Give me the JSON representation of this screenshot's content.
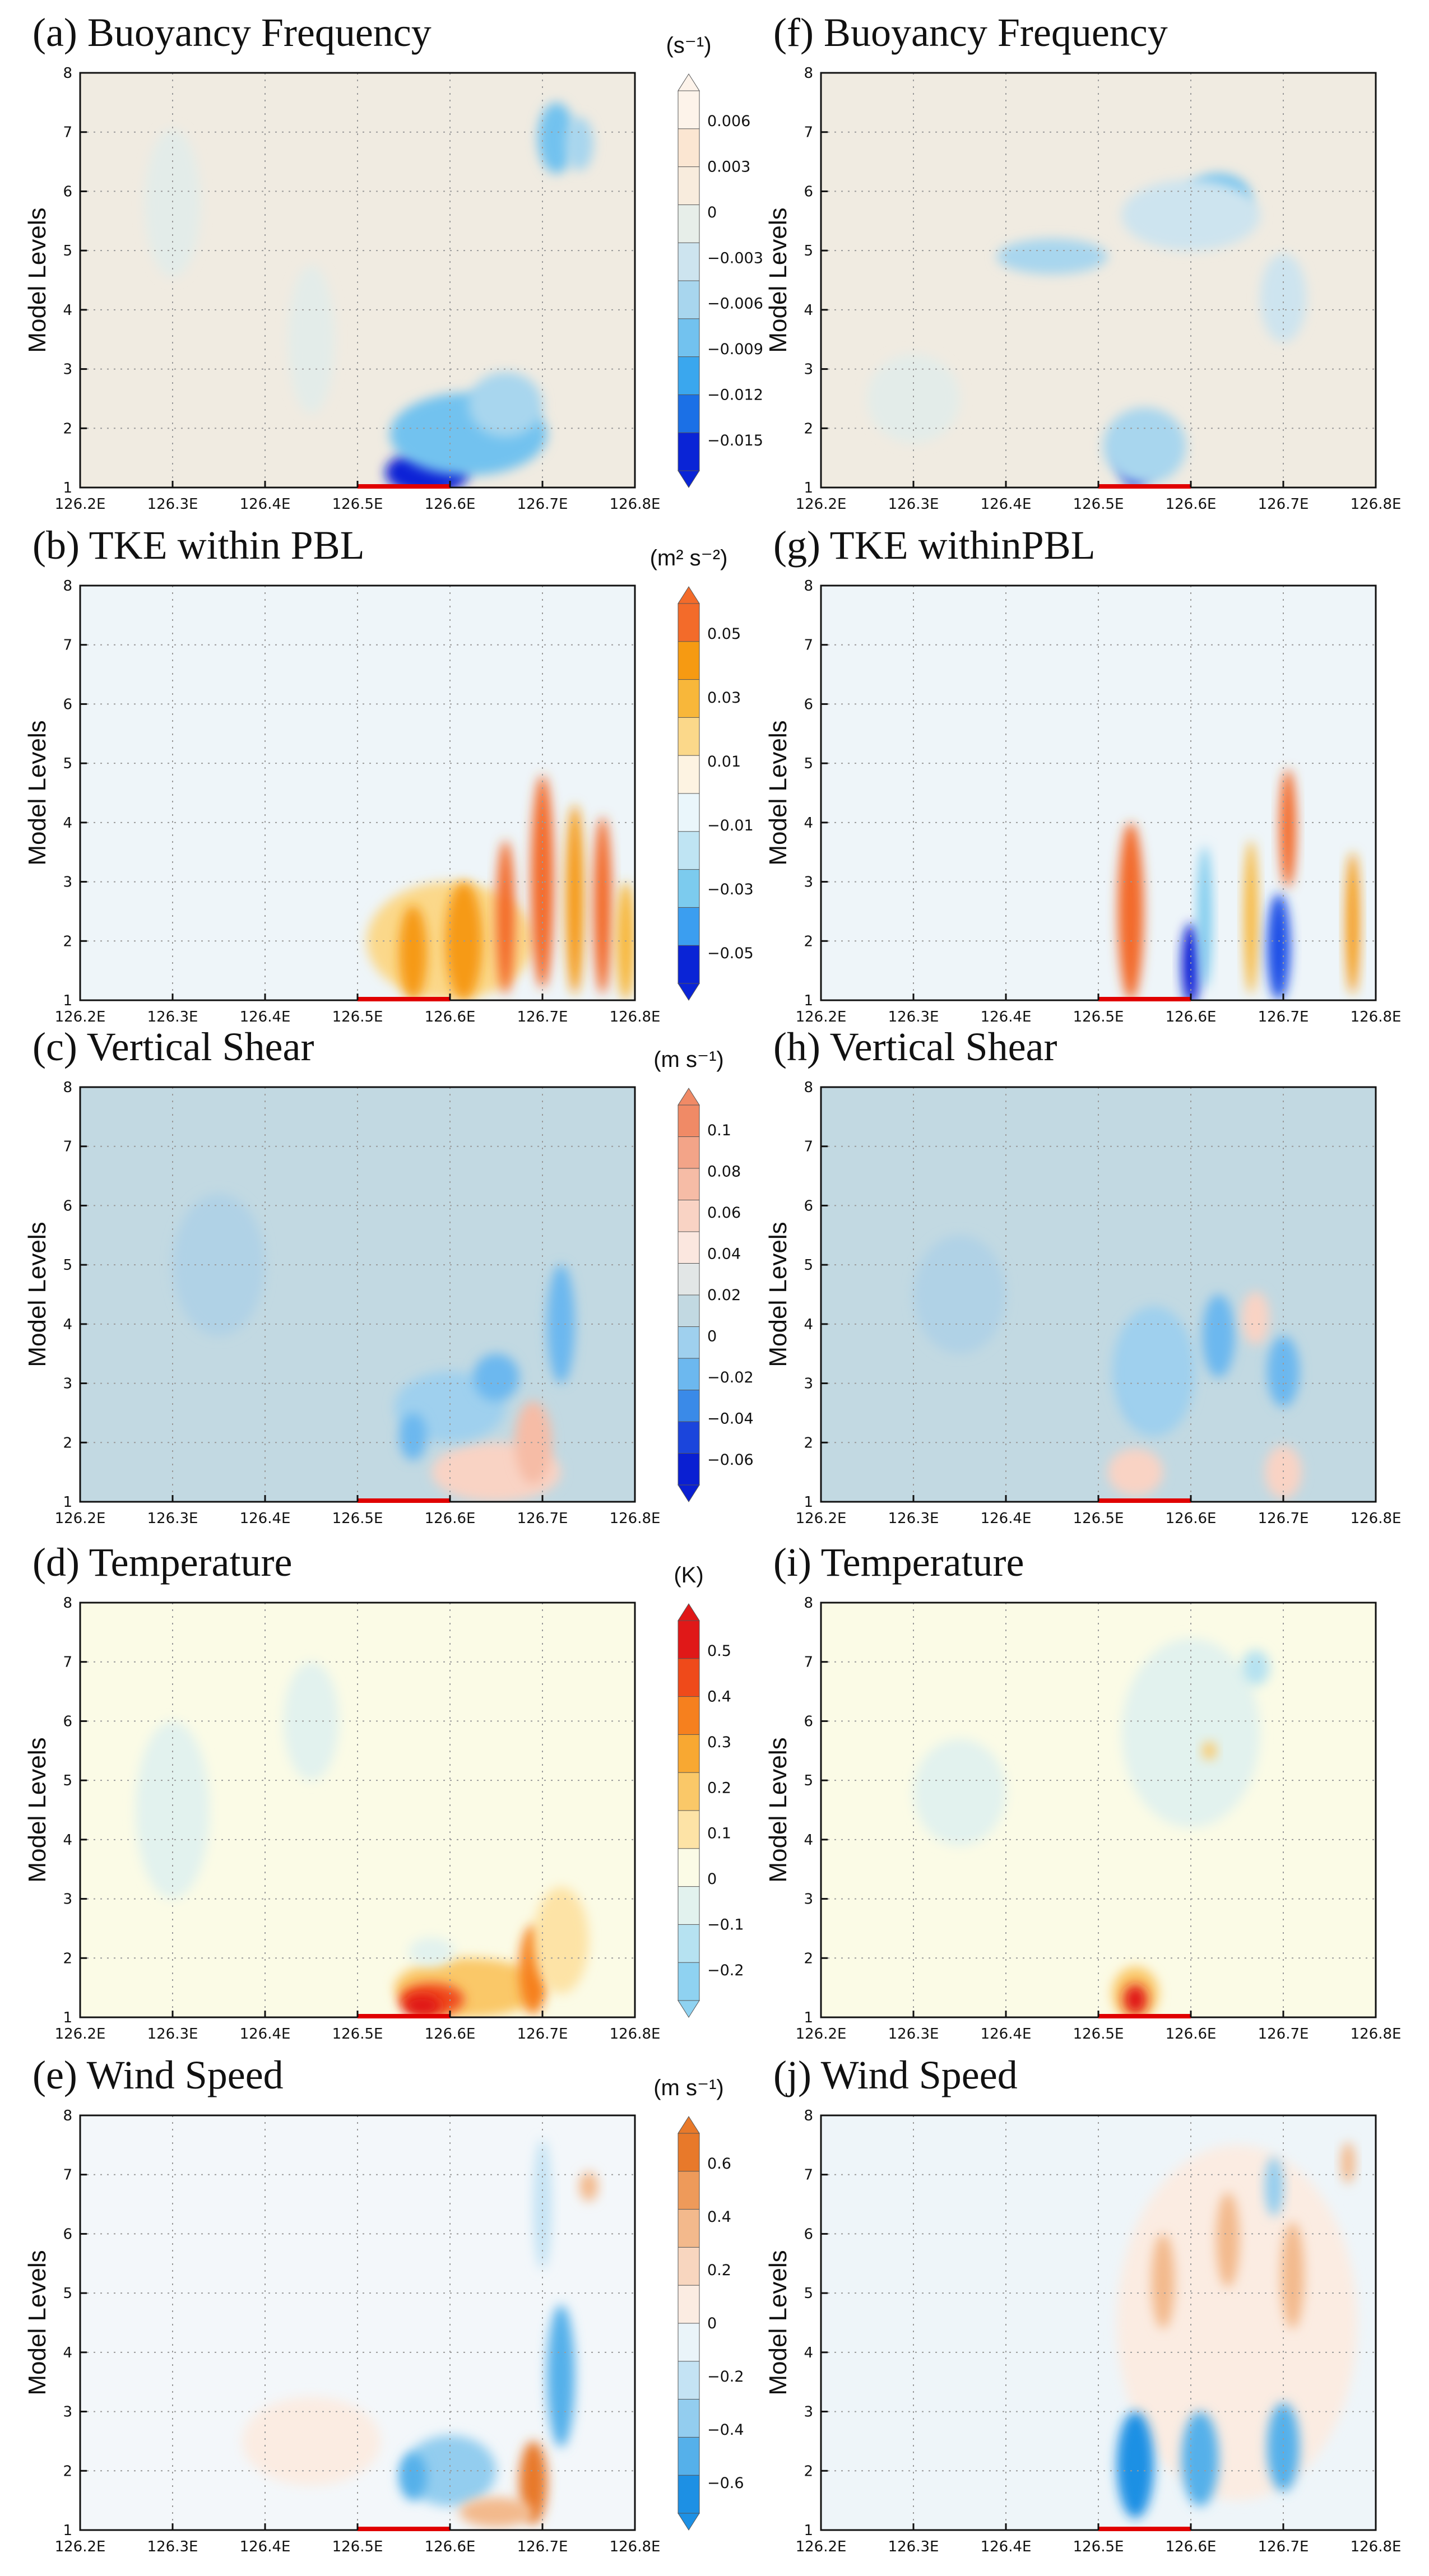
{
  "chart_data": [
    {
      "type": "heatmap",
      "title": "(a) Buoyancy Frequency",
      "ylabel": "Model Levels",
      "xlabel": "",
      "xlim": [
        126.2,
        126.8
      ],
      "ylim": [
        1,
        8
      ],
      "x_ticks": [
        "126.2E",
        "126.3E",
        "126.4E",
        "126.5E",
        "126.6E",
        "126.7E",
        "126.8E"
      ],
      "y_ticks": [
        "1",
        "2",
        "3",
        "4",
        "5",
        "6",
        "7",
        "8"
      ],
      "background": "#f0ebe1",
      "site_line": [
        126.5,
        126.6
      ],
      "colorbar": {
        "unit": "(s⁻¹)",
        "labels": [
          "0.006",
          "0.003",
          "0",
          "−0.003",
          "−0.006",
          "−0.009",
          "−0.012",
          "−0.015"
        ],
        "colors": [
          "#fdf3ea",
          "#fbe6d2",
          "#f8ecdd",
          "#e7eee9",
          "#cde4ef",
          "#a8d6ee",
          "#72c2ef",
          "#3aa7ee",
          "#1b70e6",
          "#0a24d6"
        ]
      },
      "blobs": [
        {
          "x": 126.575,
          "y": 1.25,
          "w": 0.09,
          "h": 0.75,
          "color": "#0a24d6"
        },
        {
          "x": 126.62,
          "y": 1.9,
          "w": 0.17,
          "h": 1.4,
          "color": "#72c2ef"
        },
        {
          "x": 126.66,
          "y": 2.4,
          "w": 0.08,
          "h": 1.1,
          "color": "#a8d6ee"
        },
        {
          "x": 126.715,
          "y": 6.9,
          "w": 0.04,
          "h": 1.2,
          "color": "#72c2ef"
        },
        {
          "x": 126.74,
          "y": 6.8,
          "w": 0.03,
          "h": 0.9,
          "color": "#a8d6ee"
        },
        {
          "x": 126.3,
          "y": 5.8,
          "w": 0.06,
          "h": 2.5,
          "color": "#e3ece9"
        },
        {
          "x": 126.45,
          "y": 3.5,
          "w": 0.05,
          "h": 2.5,
          "color": "#e3ece9"
        }
      ]
    },
    {
      "type": "heatmap",
      "title": "(f) Buoyancy Frequency",
      "ylabel": "Model Levels",
      "xlabel": "",
      "xlim": [
        126.2,
        126.8
      ],
      "ylim": [
        1,
        8
      ],
      "x_ticks": [
        "126.2E",
        "126.3E",
        "126.4E",
        "126.5E",
        "126.6E",
        "126.7E",
        "126.8E"
      ],
      "y_ticks": [
        "1",
        "2",
        "3",
        "4",
        "5",
        "6",
        "7",
        "8"
      ],
      "background": "#f0ebe1",
      "site_line": [
        126.5,
        126.6
      ],
      "colorbar": null,
      "blobs": [
        {
          "x": 126.54,
          "y": 1.5,
          "w": 0.035,
          "h": 1.0,
          "color": "#0a24d6"
        },
        {
          "x": 126.55,
          "y": 1.7,
          "w": 0.09,
          "h": 1.3,
          "color": "#a8d6ee"
        },
        {
          "x": 126.45,
          "y": 4.9,
          "w": 0.12,
          "h": 0.6,
          "color": "#a8d6ee"
        },
        {
          "x": 126.63,
          "y": 5.9,
          "w": 0.07,
          "h": 0.8,
          "color": "#72c2ef"
        },
        {
          "x": 126.6,
          "y": 5.6,
          "w": 0.15,
          "h": 1.2,
          "color": "#cde4ef"
        },
        {
          "x": 126.7,
          "y": 4.2,
          "w": 0.05,
          "h": 1.5,
          "color": "#cde4ef"
        },
        {
          "x": 126.3,
          "y": 2.5,
          "w": 0.1,
          "h": 1.5,
          "color": "#e3ece9"
        }
      ]
    },
    {
      "type": "heatmap",
      "title": "(b) TKE within PBL",
      "ylabel": "Model Levels",
      "xlabel": "",
      "xlim": [
        126.2,
        126.8
      ],
      "ylim": [
        1,
        8
      ],
      "x_ticks": [
        "126.2E",
        "126.3E",
        "126.4E",
        "126.5E",
        "126.6E",
        "126.7E",
        "126.8E"
      ],
      "y_ticks": [
        "1",
        "2",
        "3",
        "4",
        "5",
        "6",
        "7",
        "8"
      ],
      "background": "#eef5f9",
      "site_line": [
        126.5,
        126.6
      ],
      "colorbar": {
        "unit": "(m² s⁻²)",
        "labels": [
          "0.05",
          "0.03",
          "0.01",
          "−0.01",
          "−0.03",
          "−0.05"
        ],
        "colors": [
          "#f36b2a",
          "#f69a12",
          "#f8b73a",
          "#fbd88a",
          "#fdf3e2",
          "#eaf6fb",
          "#bfe4f3",
          "#7ccbee",
          "#3b9ef0",
          "#0a24d6"
        ]
      },
      "blobs": [
        {
          "x": 126.6,
          "y": 2.0,
          "w": 0.18,
          "h": 2.0,
          "color": "#fbd88a"
        },
        {
          "x": 126.56,
          "y": 1.8,
          "w": 0.03,
          "h": 1.6,
          "color": "#f69a12"
        },
        {
          "x": 126.615,
          "y": 2.0,
          "w": 0.04,
          "h": 2.0,
          "color": "#f69a12"
        },
        {
          "x": 126.66,
          "y": 2.4,
          "w": 0.02,
          "h": 2.6,
          "color": "#f36b2a"
        },
        {
          "x": 126.7,
          "y": 3.0,
          "w": 0.025,
          "h": 3.6,
          "color": "#f36b2a"
        },
        {
          "x": 126.735,
          "y": 2.7,
          "w": 0.02,
          "h": 3.2,
          "color": "#f69a12"
        },
        {
          "x": 126.765,
          "y": 2.6,
          "w": 0.02,
          "h": 3.0,
          "color": "#f36b2a"
        },
        {
          "x": 126.79,
          "y": 2.0,
          "w": 0.02,
          "h": 2.0,
          "color": "#f8b73a"
        }
      ]
    },
    {
      "type": "heatmap",
      "title": "(g) TKE withinPBL",
      "ylabel": "Model Levels",
      "xlabel": "",
      "xlim": [
        126.2,
        126.8
      ],
      "ylim": [
        1,
        8
      ],
      "x_ticks": [
        "126.2E",
        "126.3E",
        "126.4E",
        "126.5E",
        "126.6E",
        "126.7E",
        "126.8E"
      ],
      "y_ticks": [
        "1",
        "2",
        "3",
        "4",
        "5",
        "6",
        "7",
        "8"
      ],
      "background": "#eef5f9",
      "site_line": [
        126.5,
        126.6
      ],
      "colorbar": null,
      "blobs": [
        {
          "x": 126.535,
          "y": 2.5,
          "w": 0.028,
          "h": 3.0,
          "color": "#f36b2a"
        },
        {
          "x": 126.6,
          "y": 1.6,
          "w": 0.02,
          "h": 1.4,
          "color": "#0a24d6"
        },
        {
          "x": 126.615,
          "y": 2.4,
          "w": 0.015,
          "h": 2.4,
          "color": "#7ccbee"
        },
        {
          "x": 126.665,
          "y": 2.4,
          "w": 0.015,
          "h": 2.6,
          "color": "#f8b73a"
        },
        {
          "x": 126.695,
          "y": 1.9,
          "w": 0.025,
          "h": 1.8,
          "color": "#1b50e6"
        },
        {
          "x": 126.705,
          "y": 3.9,
          "w": 0.018,
          "h": 2.0,
          "color": "#f36b2a"
        },
        {
          "x": 126.775,
          "y": 2.3,
          "w": 0.015,
          "h": 2.4,
          "color": "#f69a12"
        }
      ]
    },
    {
      "type": "heatmap",
      "title": "(c) Vertical Shear",
      "ylabel": "Model Levels",
      "xlabel": "",
      "xlim": [
        126.2,
        126.8
      ],
      "ylim": [
        1,
        8
      ],
      "x_ticks": [
        "126.2E",
        "126.3E",
        "126.4E",
        "126.5E",
        "126.6E",
        "126.7E",
        "126.8E"
      ],
      "y_ticks": [
        "1",
        "2",
        "3",
        "4",
        "5",
        "6",
        "7",
        "8"
      ],
      "background": "#c2d9e2",
      "site_line": [
        126.5,
        126.6
      ],
      "colorbar": {
        "unit": "(m s⁻¹)",
        "labels": [
          "0.1",
          "0.08",
          "0.06",
          "0.04",
          "0.02",
          "0",
          "−0.02",
          "−0.04",
          "−0.06"
        ],
        "colors": [
          "#f08a66",
          "#f3a488",
          "#f6bca6",
          "#f9d3c4",
          "#fbe7df",
          "#e2e6e6",
          "#c2d9e2",
          "#9fd0ee",
          "#6cb8ef",
          "#3a8ae8",
          "#1b45dc",
          "#0a1fd2"
        ]
      },
      "blobs": [
        {
          "x": 126.65,
          "y": 1.5,
          "w": 0.14,
          "h": 1.0,
          "color": "#f9d3c4"
        },
        {
          "x": 126.69,
          "y": 2.0,
          "w": 0.04,
          "h": 1.4,
          "color": "#f6bca6"
        },
        {
          "x": 126.6,
          "y": 2.6,
          "w": 0.12,
          "h": 1.2,
          "color": "#9fd0ee"
        },
        {
          "x": 126.56,
          "y": 2.1,
          "w": 0.03,
          "h": 0.8,
          "color": "#6cb8ef"
        },
        {
          "x": 126.72,
          "y": 4.0,
          "w": 0.03,
          "h": 2.0,
          "color": "#6cb8ef"
        },
        {
          "x": 126.65,
          "y": 3.1,
          "w": 0.05,
          "h": 0.8,
          "color": "#6cb8ef"
        },
        {
          "x": 126.35,
          "y": 5.0,
          "w": 0.1,
          "h": 2.4,
          "color": "#b0d2e6"
        }
      ]
    },
    {
      "type": "heatmap",
      "title": "(h) Vertical Shear",
      "ylabel": "Model Levels",
      "xlabel": "",
      "xlim": [
        126.2,
        126.8
      ],
      "ylim": [
        1,
        8
      ],
      "x_ticks": [
        "126.2E",
        "126.3E",
        "126.4E",
        "126.5E",
        "126.6E",
        "126.7E",
        "126.8E"
      ],
      "y_ticks": [
        "1",
        "2",
        "3",
        "4",
        "5",
        "6",
        "7",
        "8"
      ],
      "background": "#c2d9e2",
      "site_line": [
        126.5,
        126.6
      ],
      "colorbar": null,
      "blobs": [
        {
          "x": 126.55,
          "y": 3.1,
          "w": 0.035,
          "h": 1.3,
          "color": "#1b45dc"
        },
        {
          "x": 126.56,
          "y": 3.2,
          "w": 0.09,
          "h": 2.2,
          "color": "#9fd0ee"
        },
        {
          "x": 126.63,
          "y": 3.8,
          "w": 0.035,
          "h": 1.4,
          "color": "#6cb8ef"
        },
        {
          "x": 126.7,
          "y": 3.2,
          "w": 0.035,
          "h": 1.2,
          "color": "#6cb8ef"
        },
        {
          "x": 126.67,
          "y": 4.1,
          "w": 0.03,
          "h": 0.9,
          "color": "#f9d3c4"
        },
        {
          "x": 126.54,
          "y": 1.5,
          "w": 0.06,
          "h": 0.8,
          "color": "#f9d3c4"
        },
        {
          "x": 126.7,
          "y": 1.5,
          "w": 0.04,
          "h": 0.9,
          "color": "#f9d3c4"
        },
        {
          "x": 126.35,
          "y": 4.5,
          "w": 0.1,
          "h": 2.0,
          "color": "#b0d2e6"
        }
      ]
    },
    {
      "type": "heatmap",
      "title": "(d) Temperature",
      "ylabel": "Model Levels",
      "xlabel": "",
      "xlim": [
        126.2,
        126.8
      ],
      "ylim": [
        1,
        8
      ],
      "x_ticks": [
        "126.2E",
        "126.3E",
        "126.4E",
        "126.5E",
        "126.6E",
        "126.7E",
        "126.8E"
      ],
      "y_ticks": [
        "1",
        "2",
        "3",
        "4",
        "5",
        "6",
        "7",
        "8"
      ],
      "background": "#fbfbe6",
      "site_line": [
        126.5,
        126.6
      ],
      "colorbar": {
        "unit": "(K)",
        "labels": [
          "0.5",
          "0.4",
          "0.3",
          "0.2",
          "0.1",
          "0",
          "−0.1",
          "−0.2"
        ],
        "colors": [
          "#e01818",
          "#ef4a1a",
          "#f6801e",
          "#f8a832",
          "#fac868",
          "#fde3a6",
          "#fbfbe6",
          "#e2f2ee",
          "#b6e2f1",
          "#8fd2f1"
        ]
      },
      "blobs": [
        {
          "x": 126.62,
          "y": 1.5,
          "w": 0.16,
          "h": 1.0,
          "color": "#fac868"
        },
        {
          "x": 126.58,
          "y": 1.3,
          "w": 0.07,
          "h": 0.55,
          "color": "#ef4a1a"
        },
        {
          "x": 126.57,
          "y": 1.2,
          "w": 0.04,
          "h": 0.35,
          "color": "#e01818"
        },
        {
          "x": 126.69,
          "y": 1.8,
          "w": 0.03,
          "h": 1.5,
          "color": "#f6801e"
        },
        {
          "x": 126.72,
          "y": 2.3,
          "w": 0.06,
          "h": 1.8,
          "color": "#fde3a6"
        },
        {
          "x": 126.58,
          "y": 2.1,
          "w": 0.05,
          "h": 0.5,
          "color": "#e2f2ee"
        },
        {
          "x": 126.3,
          "y": 4.5,
          "w": 0.08,
          "h": 3.0,
          "color": "#e2f2ee"
        },
        {
          "x": 126.45,
          "y": 6.0,
          "w": 0.06,
          "h": 2.0,
          "color": "#e2f2ee"
        }
      ]
    },
    {
      "type": "heatmap",
      "title": "(i) Temperature",
      "ylabel": "Model Levels",
      "xlabel": "",
      "xlim": [
        126.2,
        126.8
      ],
      "ylim": [
        1,
        8
      ],
      "x_ticks": [
        "126.2E",
        "126.3E",
        "126.4E",
        "126.5E",
        "126.6E",
        "126.7E",
        "126.8E"
      ],
      "y_ticks": [
        "1",
        "2",
        "3",
        "4",
        "5",
        "6",
        "7",
        "8"
      ],
      "background": "#fbfbe6",
      "site_line": [
        126.5,
        126.6
      ],
      "colorbar": null,
      "blobs": [
        {
          "x": 126.54,
          "y": 1.4,
          "w": 0.05,
          "h": 0.9,
          "color": "#fac868"
        },
        {
          "x": 126.54,
          "y": 1.3,
          "w": 0.025,
          "h": 0.5,
          "color": "#e01818"
        },
        {
          "x": 126.6,
          "y": 5.8,
          "w": 0.15,
          "h": 3.2,
          "color": "#e2f2ee"
        },
        {
          "x": 126.67,
          "y": 6.9,
          "w": 0.03,
          "h": 0.6,
          "color": "#b6e2f1"
        },
        {
          "x": 126.62,
          "y": 5.5,
          "w": 0.015,
          "h": 0.3,
          "color": "#fac868"
        },
        {
          "x": 126.35,
          "y": 4.8,
          "w": 0.1,
          "h": 1.8,
          "color": "#e2f2ee"
        }
      ]
    },
    {
      "type": "heatmap",
      "title": "(e) Wind Speed",
      "ylabel": "Model Levels",
      "xlabel": "",
      "xlim": [
        126.2,
        126.8
      ],
      "ylim": [
        1,
        8
      ],
      "x_ticks": [
        "126.2E",
        "126.3E",
        "126.4E",
        "126.5E",
        "126.6E",
        "126.7E",
        "126.8E"
      ],
      "y_ticks": [
        "1",
        "2",
        "3",
        "4",
        "5",
        "6",
        "7",
        "8"
      ],
      "background": "#f3f7fa",
      "site_line": [
        126.5,
        126.6
      ],
      "colorbar": {
        "unit": "(m s⁻¹)",
        "labels": [
          "0.6",
          "0.4",
          "0.2",
          "0",
          "−0.2",
          "−0.4",
          "−0.6"
        ],
        "colors": [
          "#e8792a",
          "#ee9a5a",
          "#f3b98c",
          "#f8d6bf",
          "#fbece2",
          "#eaf4f9",
          "#c4e3f4",
          "#93cdef",
          "#55b0ea",
          "#1d90e4"
        ]
      },
      "blobs": [
        {
          "x": 126.6,
          "y": 2.0,
          "w": 0.1,
          "h": 1.2,
          "color": "#93cdef"
        },
        {
          "x": 126.56,
          "y": 1.9,
          "w": 0.03,
          "h": 0.8,
          "color": "#55b0ea"
        },
        {
          "x": 126.72,
          "y": 3.6,
          "w": 0.03,
          "h": 2.4,
          "color": "#55b0ea"
        },
        {
          "x": 126.7,
          "y": 6.5,
          "w": 0.02,
          "h": 2.2,
          "color": "#c4e3f4"
        },
        {
          "x": 126.69,
          "y": 1.8,
          "w": 0.03,
          "h": 1.4,
          "color": "#e8792a"
        },
        {
          "x": 126.65,
          "y": 1.3,
          "w": 0.08,
          "h": 0.5,
          "color": "#f3b98c"
        },
        {
          "x": 126.75,
          "y": 6.8,
          "w": 0.02,
          "h": 0.5,
          "color": "#f3b98c"
        },
        {
          "x": 126.45,
          "y": 2.5,
          "w": 0.15,
          "h": 1.5,
          "color": "#fbece2"
        }
      ]
    },
    {
      "type": "heatmap",
      "title": "(j) Wind Speed",
      "ylabel": "Model Levels",
      "xlabel": "",
      "xlim": [
        126.2,
        126.8
      ],
      "ylim": [
        1,
        8
      ],
      "x_ticks": [
        "126.2E",
        "126.3E",
        "126.4E",
        "126.5E",
        "126.6E",
        "126.7E",
        "126.8E"
      ],
      "y_ticks": [
        "1",
        "2",
        "3",
        "4",
        "5",
        "6",
        "7",
        "8"
      ],
      "background": "#eef5f9",
      "site_line": [
        126.5,
        126.6
      ],
      "colorbar": null,
      "blobs": [
        {
          "x": 126.65,
          "y": 4.5,
          "w": 0.26,
          "h": 6.0,
          "color": "#fbece2"
        },
        {
          "x": 126.54,
          "y": 2.1,
          "w": 0.04,
          "h": 1.8,
          "color": "#1d90e4"
        },
        {
          "x": 126.61,
          "y": 2.2,
          "w": 0.04,
          "h": 1.6,
          "color": "#55b0ea"
        },
        {
          "x": 126.7,
          "y": 2.4,
          "w": 0.035,
          "h": 1.5,
          "color": "#55b0ea"
        },
        {
          "x": 126.57,
          "y": 5.2,
          "w": 0.025,
          "h": 1.6,
          "color": "#f3b98c"
        },
        {
          "x": 126.64,
          "y": 5.9,
          "w": 0.025,
          "h": 1.6,
          "color": "#f3b98c"
        },
        {
          "x": 126.71,
          "y": 5.3,
          "w": 0.025,
          "h": 1.8,
          "color": "#f3b98c"
        },
        {
          "x": 126.69,
          "y": 6.8,
          "w": 0.02,
          "h": 1.0,
          "color": "#93cdef"
        },
        {
          "x": 126.77,
          "y": 7.2,
          "w": 0.015,
          "h": 0.7,
          "color": "#f3b98c"
        }
      ]
    }
  ]
}
